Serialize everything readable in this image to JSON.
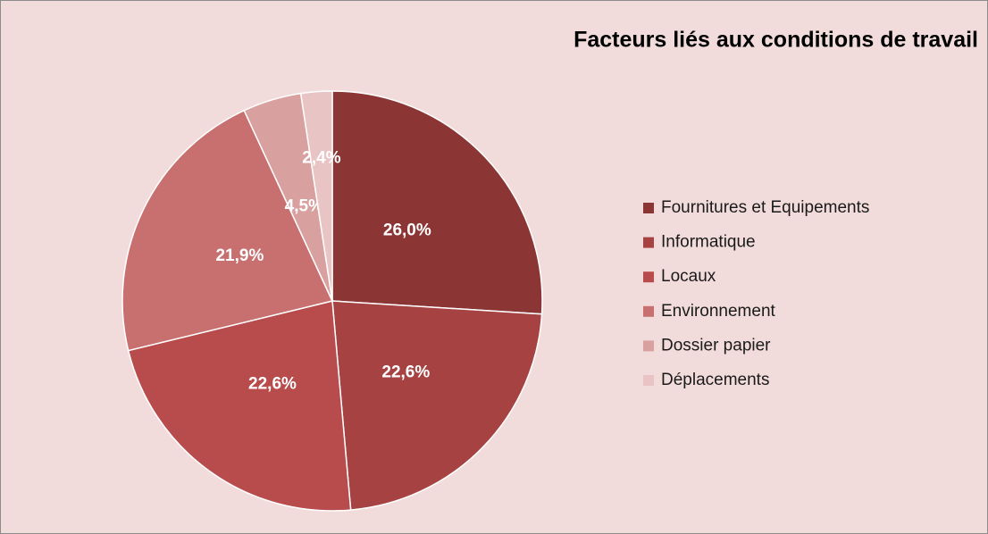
{
  "chart_data": {
    "type": "pie",
    "title": "Facteurs liés aux conditions de travail",
    "categories": [
      "Fournitures et Equipements",
      "Informatique",
      "Locaux",
      "Environnement",
      "Dossier papier",
      "Déplacements"
    ],
    "values": [
      26.0,
      22.6,
      22.6,
      21.9,
      4.5,
      2.4
    ],
    "value_labels": [
      "26,0%",
      "22,6%",
      "22,6%",
      "21,9%",
      "4,5%",
      "2,4%"
    ],
    "colors": [
      "#8b3535",
      "#a64242",
      "#b84c4c",
      "#c87070",
      "#d9a0a0",
      "#e8c4c4"
    ],
    "legend": "right"
  }
}
